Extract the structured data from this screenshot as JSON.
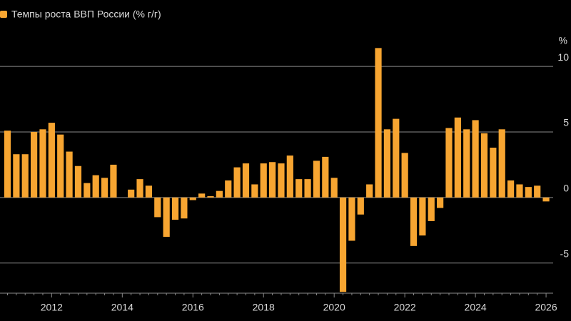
{
  "chart_data": {
    "type": "bar",
    "legend": "Темпы роста ВВП России (% г/г)",
    "y_unit": "%",
    "color": "#f7a531",
    "categories": [
      null,
      null,
      null,
      null,
      null,
      "2012",
      null,
      null,
      null,
      null,
      null,
      null,
      null,
      "2014",
      null,
      null,
      null,
      null,
      null,
      null,
      null,
      "2016",
      null,
      null,
      null,
      null,
      null,
      null,
      null,
      "2018",
      null,
      null,
      null,
      null,
      null,
      null,
      null,
      "2020",
      null,
      null,
      null,
      null,
      null,
      null,
      null,
      "2022",
      null,
      null,
      null,
      null,
      null,
      null,
      null,
      "2024",
      null,
      null,
      null,
      null,
      null,
      null,
      null,
      "2026"
    ],
    "values": [
      5.1,
      3.3,
      3.3,
      5.0,
      5.2,
      5.7,
      4.8,
      3.5,
      2.4,
      1.1,
      1.7,
      1.5,
      2.5,
      0,
      0.6,
      1.4,
      0.9,
      -1.5,
      -3.0,
      -1.7,
      -1.6,
      -0.2,
      0.3,
      0.1,
      0.5,
      1.3,
      2.3,
      2.6,
      1.0,
      2.6,
      2.7,
      2.6,
      3.2,
      1.4,
      1.4,
      2.8,
      3.1,
      1.5,
      -7.2,
      -3.3,
      -1.3,
      1.0,
      11.4,
      5.2,
      6.0,
      3.4,
      -3.7,
      -2.9,
      -1.8,
      -0.8,
      5.3,
      6.1,
      5.2,
      5.9,
      4.9,
      3.8,
      5.2,
      1.3,
      1.0,
      0.8,
      0.9,
      -0.3
    ],
    "ylim": [
      -7.3,
      11.8
    ],
    "yticks": [
      -5,
      0,
      5,
      10
    ],
    "grid": true
  }
}
